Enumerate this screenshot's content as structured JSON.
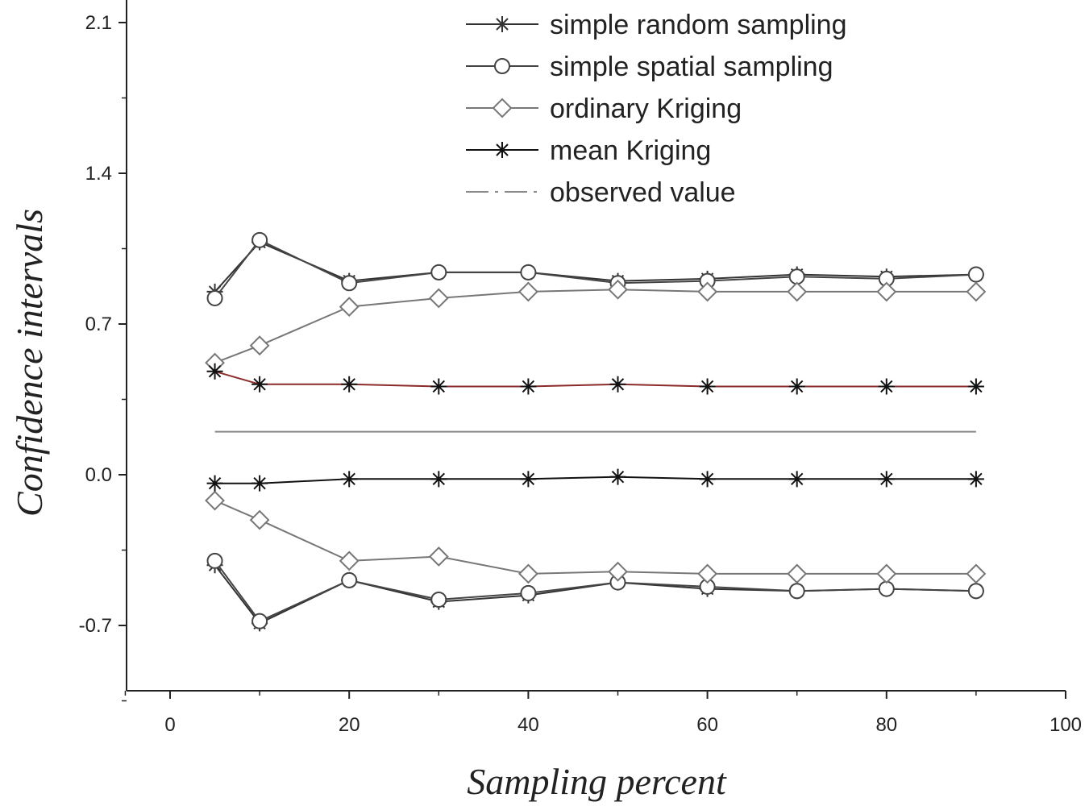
{
  "chart_data": {
    "type": "line",
    "title": "",
    "xlabel": "Sampling percent",
    "ylabel": "Confidence intervals",
    "xlim": [
      -5,
      100
    ],
    "ylim": [
      -1.0,
      2.2
    ],
    "x_ticks": [
      0,
      20,
      40,
      60,
      80,
      100
    ],
    "x_tick_labels": [
      "0",
      "20",
      "40",
      "60",
      "80",
      "100"
    ],
    "y_ticks": [
      -0.7,
      0.0,
      0.7,
      1.4,
      2.1
    ],
    "y_tick_labels": [
      "-0.7",
      "0.0",
      "0.7",
      "1.4",
      "2.1"
    ],
    "legend_position": "top-right",
    "x": [
      5,
      10,
      20,
      30,
      40,
      50,
      60,
      70,
      80,
      90
    ],
    "series": [
      {
        "name": "simple random sampling",
        "marker": "star",
        "color": "#333333",
        "upper": [
          0.85,
          1.08,
          0.9,
          0.94,
          0.94,
          0.9,
          0.91,
          0.93,
          0.92,
          0.93
        ],
        "lower": [
          -0.42,
          -0.69,
          -0.49,
          -0.59,
          -0.56,
          -0.5,
          -0.53,
          -0.54,
          -0.53,
          -0.54
        ]
      },
      {
        "name": "simple spatial sampling",
        "marker": "circle",
        "color": "#444444",
        "upper": [
          0.82,
          1.09,
          0.89,
          0.94,
          0.94,
          0.89,
          0.9,
          0.92,
          0.91,
          0.93
        ],
        "lower": [
          -0.4,
          -0.68,
          -0.49,
          -0.58,
          -0.55,
          -0.5,
          -0.52,
          -0.54,
          -0.53,
          -0.54
        ]
      },
      {
        "name": "ordinary Kriging",
        "marker": "diamond",
        "color": "#777777",
        "upper": [
          0.52,
          0.6,
          0.78,
          0.82,
          0.85,
          0.86,
          0.85,
          0.85,
          0.85,
          0.85
        ],
        "lower": [
          -0.12,
          -0.21,
          -0.4,
          -0.38,
          -0.46,
          -0.45,
          -0.46,
          -0.46,
          -0.46,
          -0.46
        ]
      },
      {
        "name": "mean Kriging",
        "marker": "star",
        "color": "#111111",
        "upper_color": "#8b2a2a",
        "upper": [
          0.48,
          0.42,
          0.42,
          0.41,
          0.41,
          0.42,
          0.41,
          0.41,
          0.41,
          0.41
        ],
        "lower": [
          -0.04,
          -0.04,
          -0.02,
          -0.02,
          -0.02,
          -0.01,
          -0.02,
          -0.02,
          -0.02,
          -0.02
        ]
      },
      {
        "name": "observed value",
        "marker": "none",
        "color": "#888888",
        "x": [
          5,
          90
        ],
        "values": [
          0.2,
          0.2
        ]
      }
    ]
  }
}
